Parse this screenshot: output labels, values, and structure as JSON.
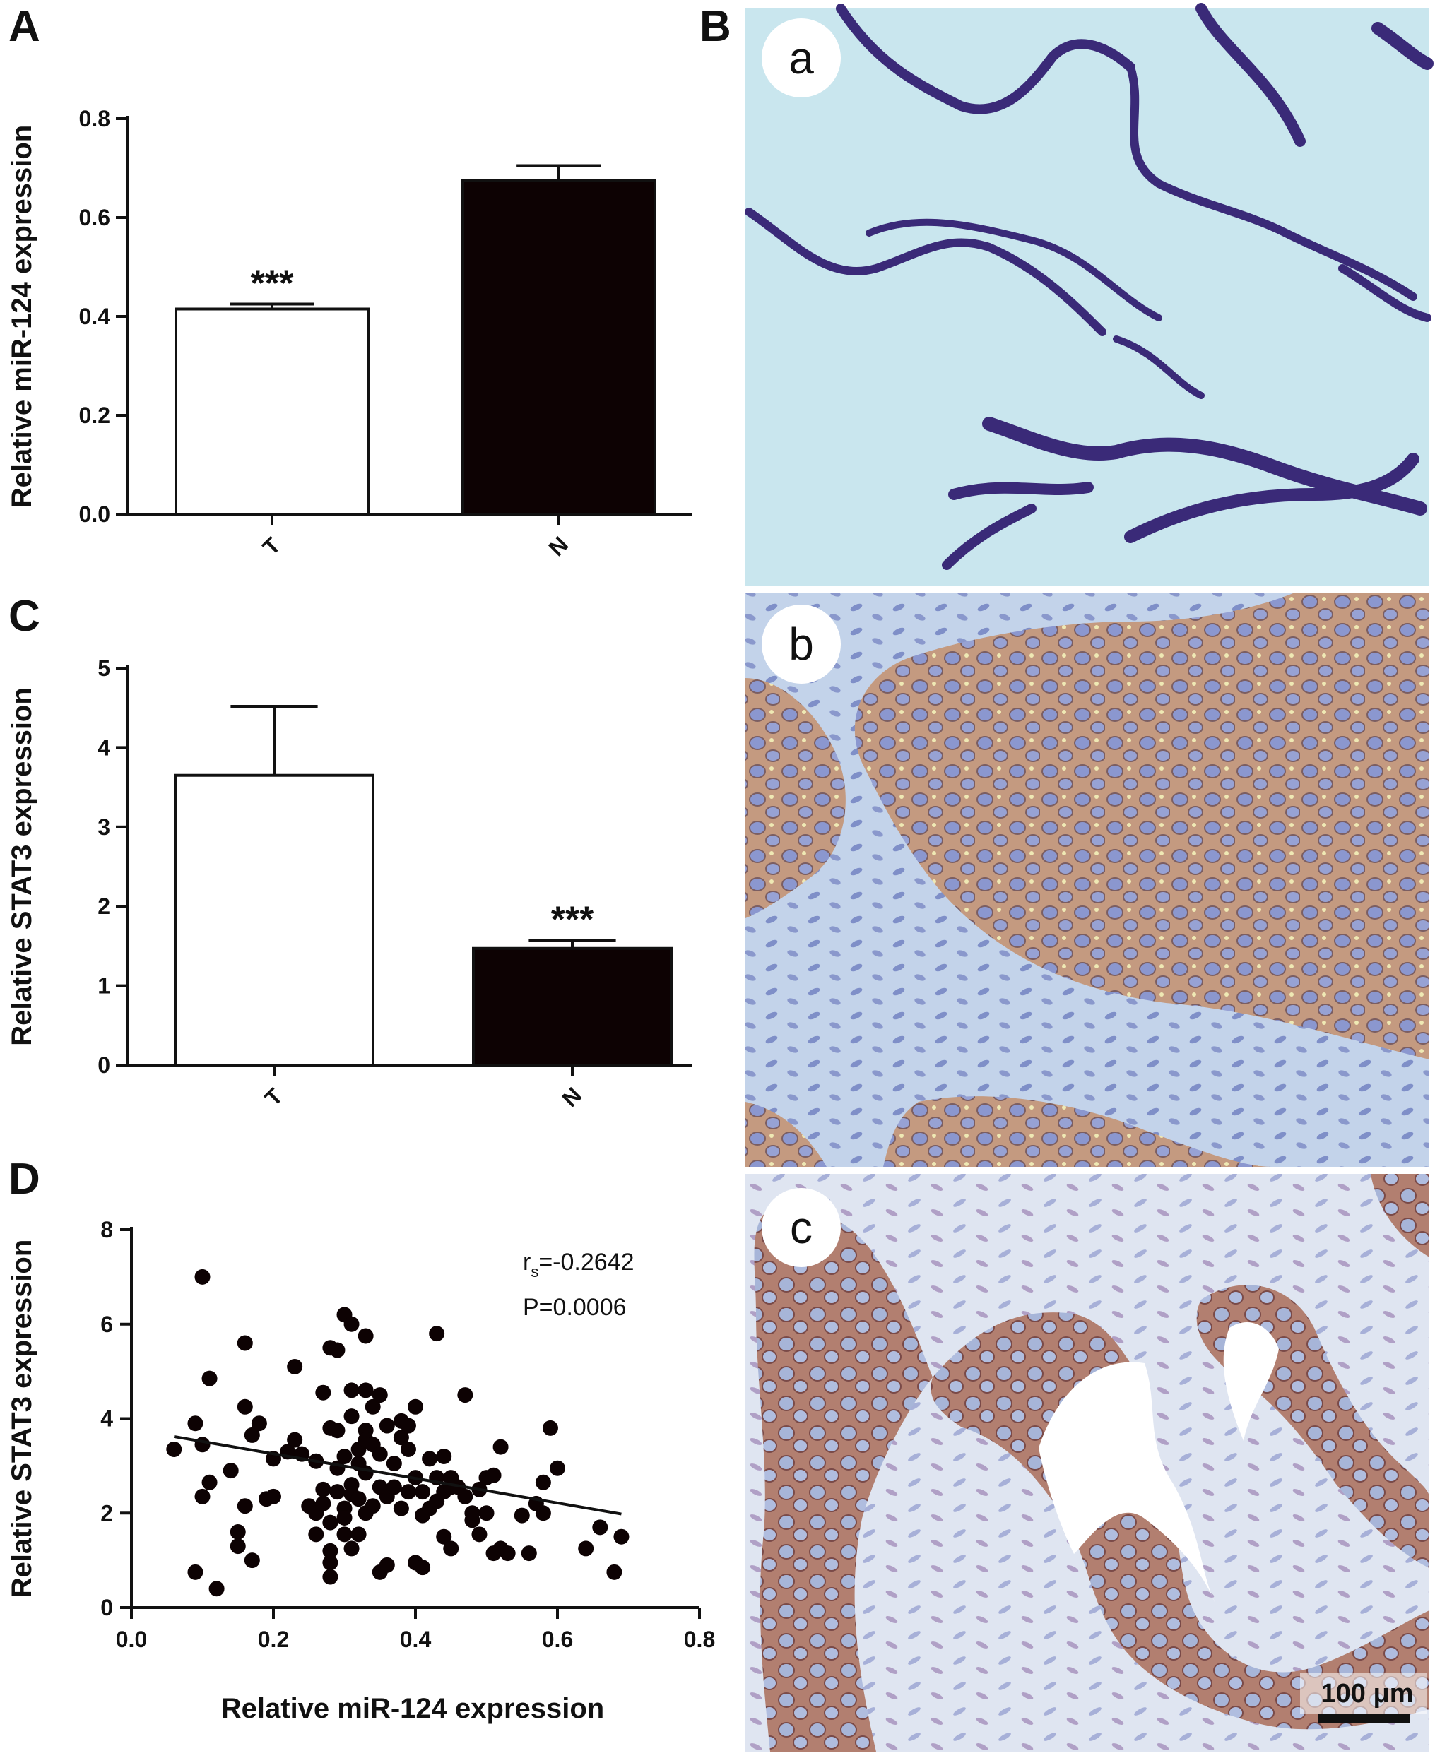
{
  "panels": {
    "A": "A",
    "B": "B",
    "C": "C",
    "D": "D"
  },
  "micrographs": {
    "labels": [
      "a",
      "b",
      "c"
    ],
    "scale_bar": "100 μm",
    "colors": {
      "a_background": "#c9e6ee",
      "a_stain": "#3a2a78",
      "b_stroma": "#b9cce6",
      "b_tumor": "#c49a80",
      "b_nuclei": "#8b97cf",
      "c_stroma": "#dde4f0",
      "c_tumor": "#b27f70",
      "c_nuclei": "#a7b5d8"
    }
  },
  "chart_data": [
    {
      "id": "A",
      "type": "bar",
      "categories": [
        "T",
        "N"
      ],
      "values": [
        0.415,
        0.675
      ],
      "error": [
        0.01,
        0.03
      ],
      "fills": [
        "#ffffff",
        "#0d0203"
      ],
      "annotations": [
        "***",
        ""
      ],
      "ylabel": "Relative miR-124 expression",
      "ylim": [
        0,
        0.8
      ],
      "yticks": [
        "0.0",
        "0.2",
        "0.4",
        "0.6",
        "0.8"
      ]
    },
    {
      "id": "C",
      "type": "bar",
      "categories": [
        "T",
        "N"
      ],
      "values": [
        3.65,
        1.47
      ],
      "error": [
        0.87,
        0.1
      ],
      "fills": [
        "#ffffff",
        "#0d0203"
      ],
      "annotations": [
        "",
        "***"
      ],
      "ylabel": "Relative STAT3  expression",
      "ylim": [
        0,
        5
      ],
      "yticks": [
        "0",
        "1",
        "2",
        "3",
        "4",
        "5"
      ]
    },
    {
      "id": "D",
      "type": "scatter",
      "xlabel": "Relative miR-124 expression",
      "ylabel": "Relative STAT3  expression",
      "xlim": [
        0,
        0.8
      ],
      "ylim": [
        0,
        8
      ],
      "xticks": [
        "0.0",
        "0.2",
        "0.4",
        "0.6",
        "0.8"
      ],
      "yticks": [
        "0",
        "2",
        "4",
        "6",
        "8"
      ],
      "stat_r": "r",
      "stat_r_sub": "s",
      "stat_r_value": "=-0.2642",
      "stat_p": "P=0.0006",
      "fit_line": [
        [
          0.06,
          3.62
        ],
        [
          0.69,
          1.98
        ]
      ],
      "points": [
        [
          0.06,
          3.35
        ],
        [
          0.09,
          3.9
        ],
        [
          0.09,
          0.75
        ],
        [
          0.1,
          7.0
        ],
        [
          0.1,
          2.35
        ],
        [
          0.1,
          3.45
        ],
        [
          0.11,
          2.65
        ],
        [
          0.11,
          4.85
        ],
        [
          0.12,
          0.4
        ],
        [
          0.14,
          2.9
        ],
        [
          0.15,
          1.6
        ],
        [
          0.15,
          1.3
        ],
        [
          0.16,
          4.25
        ],
        [
          0.16,
          2.15
        ],
        [
          0.16,
          5.6
        ],
        [
          0.17,
          3.65
        ],
        [
          0.17,
          1.0
        ],
        [
          0.18,
          3.9
        ],
        [
          0.19,
          2.3
        ],
        [
          0.2,
          3.15
        ],
        [
          0.2,
          2.35
        ],
        [
          0.22,
          3.3
        ],
        [
          0.23,
          5.1
        ],
        [
          0.23,
          3.55
        ],
        [
          0.24,
          3.25
        ],
        [
          0.25,
          2.15
        ],
        [
          0.26,
          2.0
        ],
        [
          0.26,
          1.55
        ],
        [
          0.26,
          3.1
        ],
        [
          0.27,
          4.55
        ],
        [
          0.27,
          2.5
        ],
        [
          0.27,
          2.2
        ],
        [
          0.28,
          3.8
        ],
        [
          0.28,
          1.8
        ],
        [
          0.28,
          1.2
        ],
        [
          0.28,
          0.95
        ],
        [
          0.28,
          0.65
        ],
        [
          0.28,
          5.5
        ],
        [
          0.29,
          2.45
        ],
        [
          0.29,
          3.75
        ],
        [
          0.29,
          5.45
        ],
        [
          0.29,
          2.95
        ],
        [
          0.3,
          2.1
        ],
        [
          0.3,
          1.9
        ],
        [
          0.3,
          3.2
        ],
        [
          0.3,
          6.2
        ],
        [
          0.3,
          1.55
        ],
        [
          0.31,
          4.6
        ],
        [
          0.31,
          2.6
        ],
        [
          0.31,
          2.4
        ],
        [
          0.31,
          6.0
        ],
        [
          0.31,
          1.25
        ],
        [
          0.31,
          4.05
        ],
        [
          0.32,
          3.35
        ],
        [
          0.32,
          2.3
        ],
        [
          0.32,
          3.05
        ],
        [
          0.32,
          1.55
        ],
        [
          0.33,
          4.6
        ],
        [
          0.33,
          3.75
        ],
        [
          0.33,
          2.85
        ],
        [
          0.33,
          2.0
        ],
        [
          0.33,
          5.75
        ],
        [
          0.33,
          3.55
        ],
        [
          0.34,
          4.25
        ],
        [
          0.34,
          2.15
        ],
        [
          0.34,
          3.45
        ],
        [
          0.35,
          2.55
        ],
        [
          0.35,
          4.5
        ],
        [
          0.35,
          0.75
        ],
        [
          0.35,
          3.25
        ],
        [
          0.36,
          3.85
        ],
        [
          0.36,
          2.35
        ],
        [
          0.36,
          0.9
        ],
        [
          0.37,
          2.55
        ],
        [
          0.37,
          3.05
        ],
        [
          0.38,
          3.6
        ],
        [
          0.38,
          2.1
        ],
        [
          0.38,
          3.95
        ],
        [
          0.39,
          2.45
        ],
        [
          0.39,
          3.35
        ],
        [
          0.39,
          3.85
        ],
        [
          0.4,
          4.25
        ],
        [
          0.4,
          2.75
        ],
        [
          0.4,
          0.95
        ],
        [
          0.41,
          2.45
        ],
        [
          0.41,
          1.95
        ],
        [
          0.41,
          0.85
        ],
        [
          0.42,
          3.15
        ],
        [
          0.42,
          2.1
        ],
        [
          0.43,
          5.8
        ],
        [
          0.43,
          2.75
        ],
        [
          0.43,
          2.25
        ],
        [
          0.44,
          2.45
        ],
        [
          0.44,
          1.5
        ],
        [
          0.44,
          3.2
        ],
        [
          0.45,
          1.25
        ],
        [
          0.45,
          2.55
        ],
        [
          0.45,
          2.75
        ],
        [
          0.46,
          2.55
        ],
        [
          0.47,
          2.35
        ],
        [
          0.47,
          4.5
        ],
        [
          0.48,
          1.85
        ],
        [
          0.48,
          2.0
        ],
        [
          0.49,
          1.55
        ],
        [
          0.49,
          2.5
        ],
        [
          0.5,
          2.75
        ],
        [
          0.5,
          2.0
        ],
        [
          0.51,
          1.15
        ],
        [
          0.51,
          2.8
        ],
        [
          0.52,
          1.25
        ],
        [
          0.52,
          3.4
        ],
        [
          0.53,
          1.15
        ],
        [
          0.55,
          1.95
        ],
        [
          0.56,
          1.15
        ],
        [
          0.57,
          2.2
        ],
        [
          0.58,
          2.65
        ],
        [
          0.58,
          2.0
        ],
        [
          0.59,
          3.8
        ],
        [
          0.6,
          2.95
        ],
        [
          0.64,
          1.25
        ],
        [
          0.66,
          1.7
        ],
        [
          0.68,
          0.75
        ],
        [
          0.69,
          1.5
        ]
      ]
    }
  ]
}
